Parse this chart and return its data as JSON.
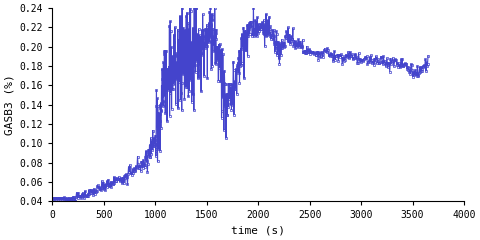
{
  "title": "",
  "xlabel": "time (s)",
  "ylabel": "GASB3 (%)",
  "xlim": [
    0,
    4000
  ],
  "ylim": [
    0.04,
    0.24
  ],
  "xticks": [
    0,
    500,
    1000,
    1500,
    2000,
    2500,
    3000,
    3500,
    4000
  ],
  "yticks": [
    0.04,
    0.06,
    0.08,
    0.1,
    0.12,
    0.14,
    0.16,
    0.18,
    0.2,
    0.22,
    0.24
  ],
  "line_color": "#4444cc",
  "marker": "s",
  "markersize": 1.5,
  "linewidth": 0.8,
  "bg_color": "#ffffff",
  "font_family": "monospace",
  "font_size": 8
}
